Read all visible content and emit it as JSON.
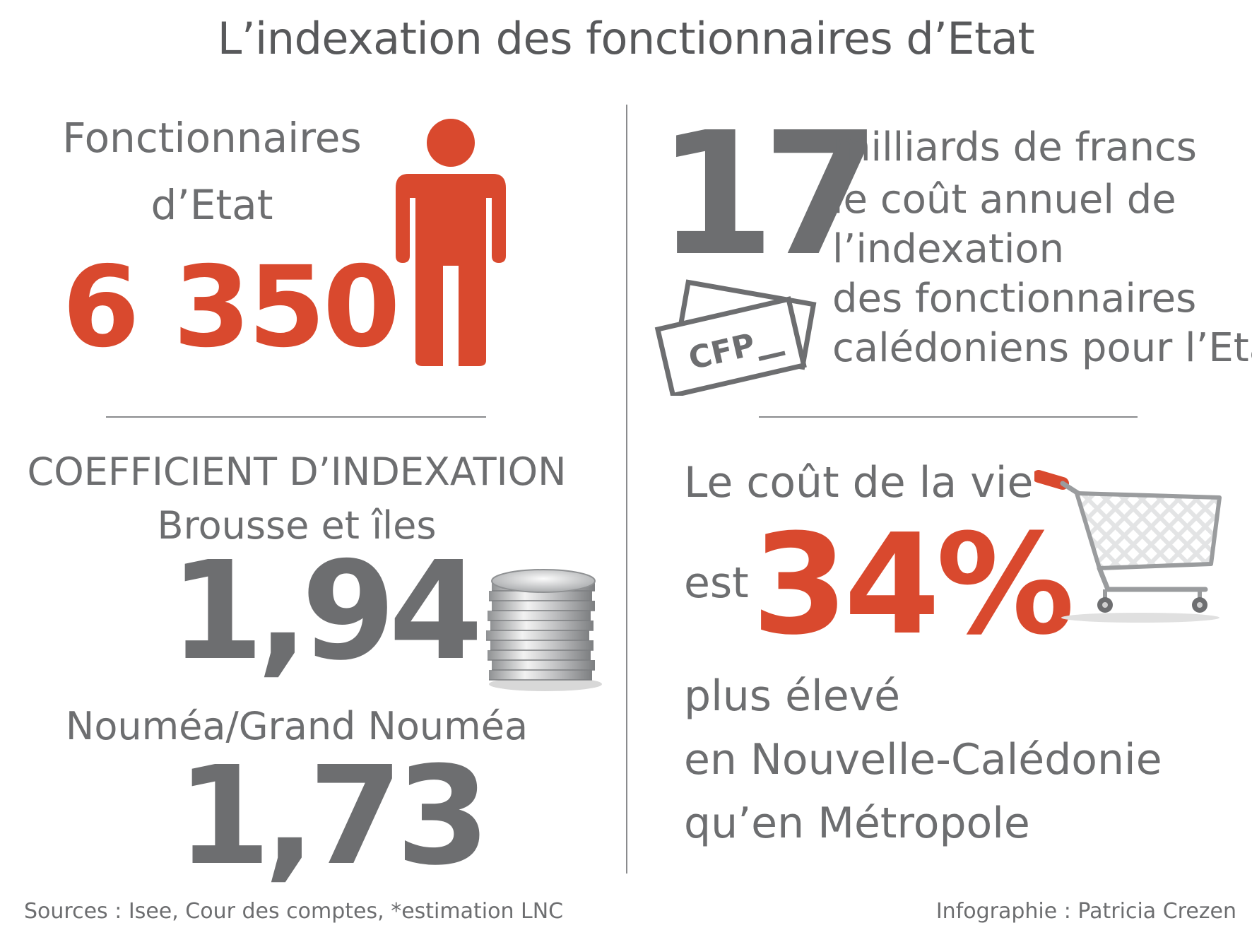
{
  "title": "L’indexation des fonctionnaires d’Etat",
  "fonctionnaires": {
    "label_line1": "Fonctionnaires",
    "label_line2": "d’Etat",
    "count": "6 350"
  },
  "cost": {
    "value": "17",
    "line1": "milliards de francs",
    "line2": "le coût annuel de",
    "line3": "l’indexation",
    "line4": "des fonctionnaires",
    "line5": "calédoniens pour l’Etat*",
    "banknote_text": "CFP"
  },
  "coefficient": {
    "title": "COEFFICIENT D’INDEXATION",
    "brousse_label": "Brousse et îles",
    "brousse_value": "1,94",
    "noumea_label": "Nouméa/Grand Nouméa",
    "noumea_value": "1,73"
  },
  "cost_of_living": {
    "line1": "Le coût de la vie",
    "prefix": "est",
    "percent": "34%",
    "line3": "plus élevé",
    "line4": "en Nouvelle-Calédonie",
    "line5": "qu’en Métropole"
  },
  "footer": {
    "sources": "Sources : Isee, Cour des comptes, *estimation LNC",
    "credit": "Infographie : Patricia Crezen"
  },
  "colors": {
    "accent_red": "#d9492e",
    "text_gray": "#6d6e70"
  }
}
